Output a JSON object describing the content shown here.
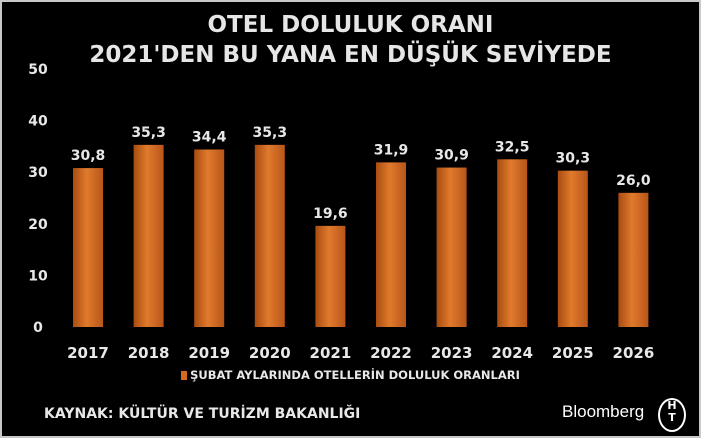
{
  "title_line1": "OTEL DOLULUK ORANI",
  "title_line2": "2021'DEN BU YANA EN DÜŞÜK SEVİYEDE",
  "source": "KAYNAK: KÜLTÜR VE TURİZM BAKANLIĞI",
  "brand": "Bloomberg",
  "brand_mark": "HT",
  "chart_data": {
    "type": "bar",
    "categories": [
      "2017",
      "2018",
      "2019",
      "2020",
      "2021",
      "2022",
      "2023",
      "2024",
      "2025",
      "2026"
    ],
    "series": [
      {
        "name": "ŞUBAT AYLARINDA OTELLERİN DOLULUK ORANLARI",
        "values": [
          30.8,
          35.3,
          34.4,
          35.3,
          19.6,
          31.9,
          30.9,
          32.5,
          30.3,
          26.0
        ]
      }
    ],
    "data_labels": [
      "30,8",
      "35,3",
      "34,4",
      "35,3",
      "19,6",
      "31,9",
      "30,9",
      "32,5",
      "30,3",
      "26,0"
    ],
    "ylim": [
      0,
      50
    ],
    "yticks": [
      "0",
      "10",
      "20",
      "30",
      "40",
      "50"
    ],
    "grid": false,
    "legend_position": "bottom",
    "bar_color": "#d2691e",
    "background": "#000000"
  }
}
